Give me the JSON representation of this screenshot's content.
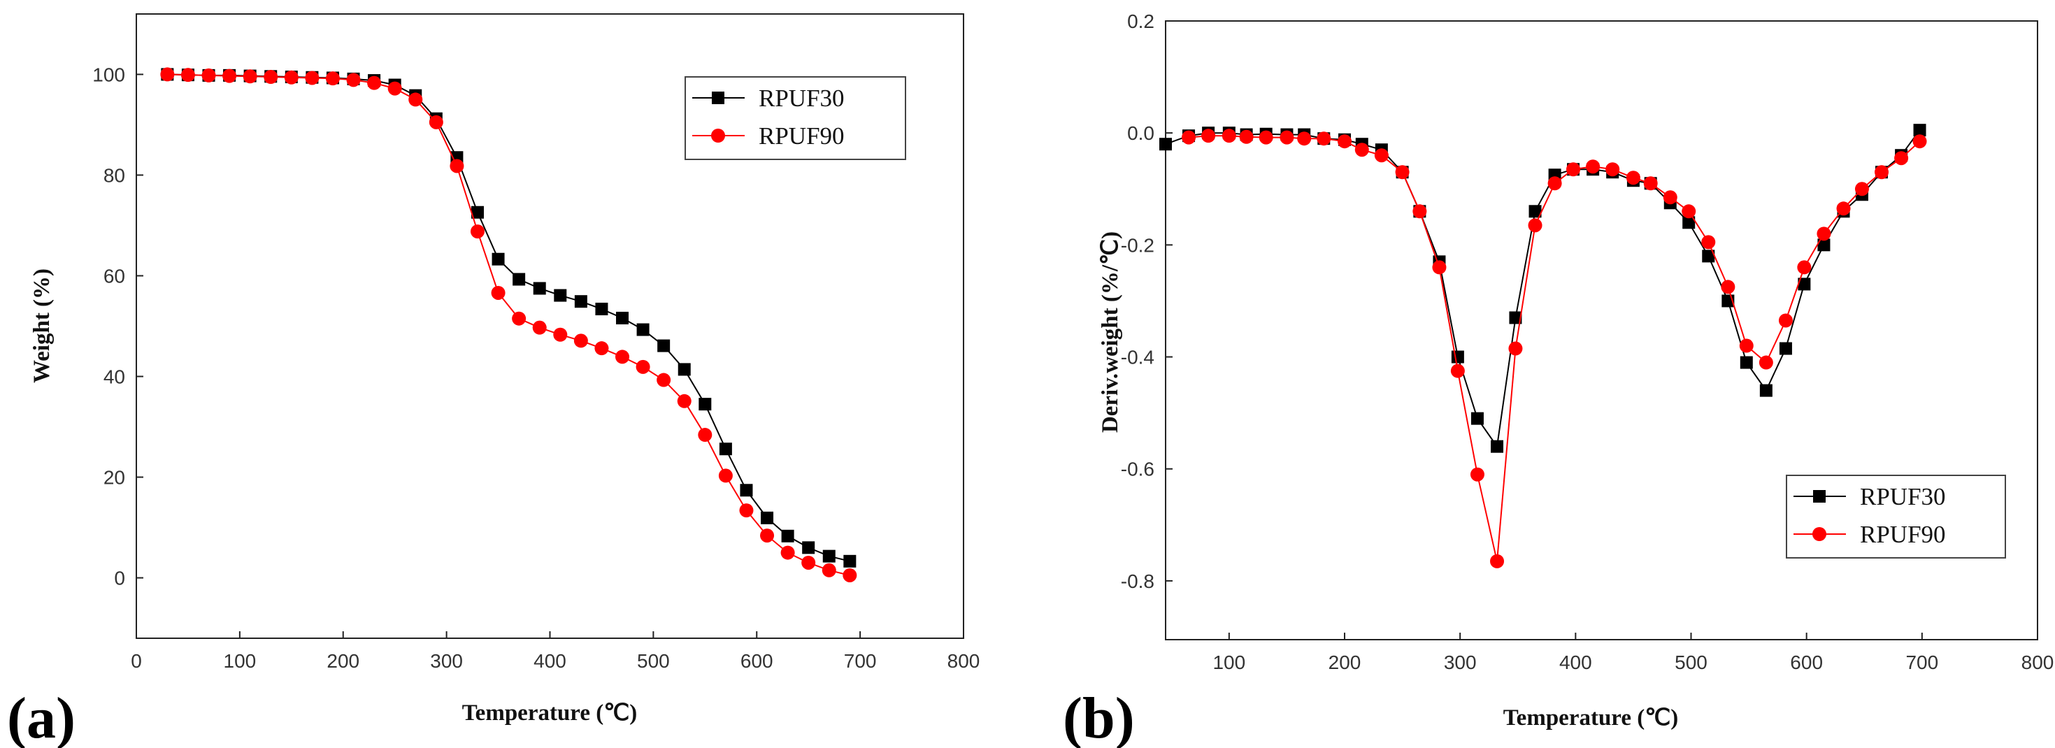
{
  "colors": {
    "RPUF30": "#000000",
    "RPUF90": "#ff0000"
  },
  "chart_data": [
    {
      "type": "line",
      "panel_label": "(a)",
      "title": "",
      "xlabel": "Temperature (℃)",
      "ylabel": "Weight (%)",
      "xlim": [
        0,
        800
      ],
      "ylim": [
        -12,
        112
      ],
      "x_ticks": [
        "0",
        "100",
        "200",
        "300",
        "400",
        "500",
        "600",
        "700",
        "800"
      ],
      "y_ticks": [
        "0",
        "20",
        "40",
        "60",
        "80",
        "100"
      ],
      "grid": false,
      "legend_position": "top-right",
      "series": [
        {
          "name": "RPUF30",
          "marker": "square",
          "x": [
            30,
            50,
            70,
            90,
            110,
            130,
            150,
            170,
            190,
            210,
            230,
            250,
            270,
            290,
            310,
            330,
            350,
            370,
            390,
            410,
            430,
            450,
            470,
            490,
            510,
            530,
            550,
            570,
            590,
            610,
            630,
            650,
            670,
            690
          ],
          "y": [
            100,
            99.9,
            99.8,
            99.8,
            99.7,
            99.6,
            99.5,
            99.4,
            99.3,
            99.1,
            98.8,
            97.9,
            95.8,
            91.2,
            83.5,
            72.6,
            63.3,
            59.3,
            57.5,
            56.1,
            54.9,
            53.4,
            51.6,
            49.3,
            46.1,
            41.4,
            34.5,
            25.6,
            17.4,
            11.9,
            8.3,
            6.0,
            4.3,
            3.3
          ]
        },
        {
          "name": "RPUF90",
          "marker": "circle",
          "x": [
            30,
            50,
            70,
            90,
            110,
            130,
            150,
            170,
            190,
            210,
            230,
            250,
            270,
            290,
            310,
            330,
            350,
            370,
            390,
            410,
            430,
            450,
            470,
            490,
            510,
            530,
            550,
            570,
            590,
            610,
            630,
            650,
            670,
            690
          ],
          "y": [
            100,
            99.9,
            99.8,
            99.7,
            99.6,
            99.5,
            99.4,
            99.3,
            99.2,
            98.9,
            98.3,
            97.2,
            95.0,
            90.5,
            81.8,
            68.8,
            56.6,
            51.5,
            49.7,
            48.3,
            47.1,
            45.6,
            43.9,
            41.9,
            39.3,
            35.1,
            28.4,
            20.3,
            13.4,
            8.4,
            5.0,
            3.0,
            1.5,
            0.5
          ]
        }
      ]
    },
    {
      "type": "line",
      "panel_label": "(b)",
      "title": "",
      "xlabel": "Temperature (℃)",
      "ylabel": "Deriv.weight (%/℃)",
      "xlim": [
        45,
        800
      ],
      "ylim": [
        -0.905,
        0.2
      ],
      "x_ticks": [
        "100",
        "200",
        "300",
        "400",
        "500",
        "600",
        "700",
        "800"
      ],
      "y_ticks": [
        "0.2",
        "0.0",
        "-0.2",
        "-0.4",
        "-0.6",
        "-0.8"
      ],
      "grid": false,
      "legend_position": "bottom-right",
      "series": [
        {
          "name": "RPUF30",
          "marker": "square",
          "x": [
            45,
            65,
            82,
            100,
            115,
            132,
            150,
            165,
            182,
            200,
            215,
            232,
            250,
            265,
            282,
            298,
            315,
            332,
            348,
            365,
            382,
            398,
            415,
            432,
            450,
            465,
            482,
            498,
            515,
            532,
            548,
            565,
            582,
            598,
            615,
            632,
            648,
            665,
            682,
            698
          ],
          "y": [
            -0.02,
            -0.005,
            0.0,
            0.0,
            -0.003,
            -0.002,
            -0.003,
            -0.003,
            -0.01,
            -0.012,
            -0.02,
            -0.03,
            -0.07,
            -0.14,
            -0.23,
            -0.4,
            -0.51,
            -0.56,
            -0.33,
            -0.14,
            -0.075,
            -0.065,
            -0.065,
            -0.07,
            -0.085,
            -0.09,
            -0.125,
            -0.16,
            -0.22,
            -0.3,
            -0.41,
            -0.46,
            -0.385,
            -0.27,
            -0.2,
            -0.14,
            -0.11,
            -0.07,
            -0.04,
            0.005
          ]
        },
        {
          "name": "RPUF90",
          "marker": "circle",
          "x": [
            65,
            82,
            100,
            115,
            132,
            150,
            165,
            182,
            200,
            215,
            232,
            250,
            265,
            282,
            298,
            315,
            332,
            348,
            365,
            382,
            398,
            415,
            432,
            450,
            465,
            482,
            498,
            515,
            532,
            548,
            565,
            582,
            598,
            615,
            632,
            648,
            665,
            682,
            698
          ],
          "y": [
            -0.008,
            -0.005,
            -0.005,
            -0.007,
            -0.008,
            -0.008,
            -0.01,
            -0.01,
            -0.015,
            -0.03,
            -0.04,
            -0.07,
            -0.14,
            -0.24,
            -0.425,
            -0.61,
            -0.765,
            -0.385,
            -0.165,
            -0.09,
            -0.065,
            -0.06,
            -0.065,
            -0.08,
            -0.09,
            -0.115,
            -0.14,
            -0.195,
            -0.275,
            -0.38,
            -0.41,
            -0.335,
            -0.24,
            -0.18,
            -0.135,
            -0.1,
            -0.07,
            -0.045,
            -0.015
          ]
        }
      ]
    }
  ]
}
